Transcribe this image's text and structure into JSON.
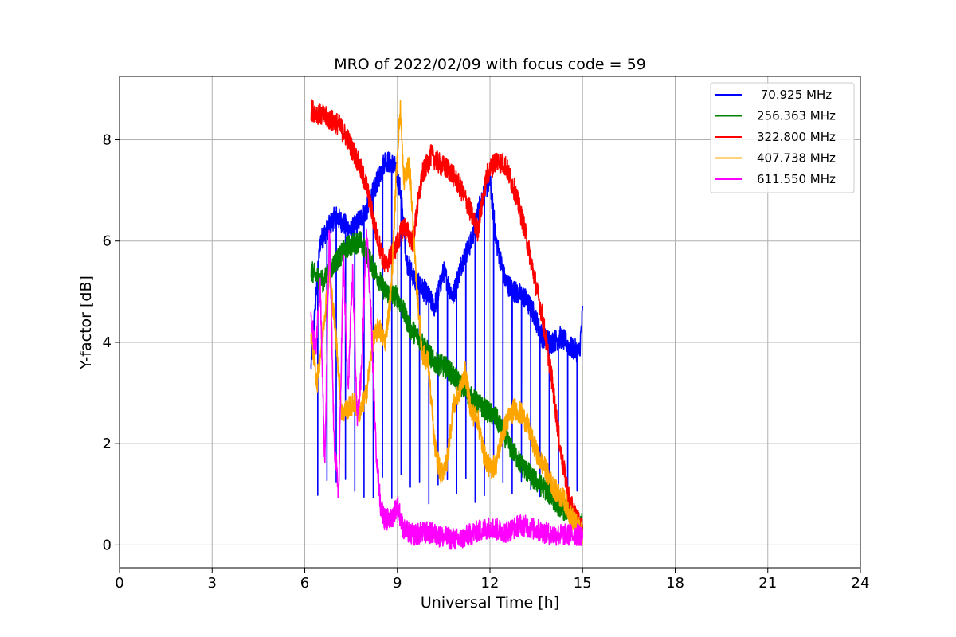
{
  "chart_data": {
    "type": "line",
    "title": "MRO of 2022/02/09 with focus code = 59",
    "xlabel": "Universal Time [h]",
    "ylabel": "Y-factor [dB]",
    "xlim": [
      0,
      24
    ],
    "ylim": [
      -0.45,
      9.25
    ],
    "xticks": [
      0,
      3,
      6,
      9,
      12,
      15,
      18,
      21,
      24
    ],
    "yticks": [
      0,
      2,
      4,
      6,
      8
    ],
    "grid": true,
    "legend_position": "top-right",
    "series": [
      {
        "name": " 70.925 MHz",
        "color": "#0000ff",
        "x": [
          6.2,
          6.5,
          7.0,
          7.5,
          8.0,
          8.3,
          8.6,
          8.9,
          9.1,
          9.3,
          9.6,
          9.9,
          10.2,
          10.5,
          10.8,
          11.1,
          11.4,
          11.7,
          12.0,
          12.2,
          12.5,
          12.8,
          13.1,
          13.4,
          13.7,
          14.0,
          14.3,
          14.6,
          14.9,
          15.0
        ],
        "y": [
          3.5,
          6.0,
          6.5,
          6.2,
          6.6,
          7.1,
          7.6,
          7.5,
          7.0,
          5.6,
          5.2,
          5.0,
          4.7,
          5.4,
          4.9,
          5.6,
          6.0,
          6.8,
          7.2,
          6.0,
          5.2,
          5.0,
          4.9,
          4.6,
          4.1,
          4.0,
          4.1,
          3.9,
          3.8,
          4.6
        ],
        "dips": [
          6.4,
          6.7,
          7.0,
          7.3,
          7.6,
          7.9,
          8.2,
          8.5,
          8.8,
          9.1,
          9.4,
          9.7,
          10.0,
          10.3,
          10.6,
          10.9,
          11.2,
          11.5,
          11.8,
          12.1,
          12.4,
          12.7,
          13.0,
          13.3,
          13.6,
          13.9,
          14.2,
          14.5,
          14.8
        ],
        "dip_to": 0.8
      },
      {
        "name": "256.363 MHz",
        "color": "#008000",
        "x": [
          6.2,
          6.6,
          7.0,
          7.4,
          7.8,
          8.2,
          8.6,
          9.0,
          9.4,
          9.8,
          10.2,
          10.6,
          11.0,
          11.4,
          11.8,
          12.2,
          12.6,
          13.0,
          13.4,
          13.8,
          14.2,
          14.6,
          15.0
        ],
        "y": [
          5.4,
          5.2,
          5.6,
          5.9,
          6.0,
          5.5,
          5.0,
          4.9,
          4.3,
          4.0,
          3.6,
          3.5,
          3.2,
          2.9,
          2.7,
          2.5,
          2.0,
          1.6,
          1.3,
          1.1,
          0.8,
          0.6,
          0.4
        ]
      },
      {
        "name": "322.800 MHz",
        "color": "#ff0000",
        "x": [
          6.2,
          6.5,
          6.8,
          7.1,
          7.4,
          7.7,
          8.0,
          8.3,
          8.6,
          8.9,
          9.2,
          9.5,
          9.8,
          10.1,
          10.4,
          10.7,
          11.0,
          11.3,
          11.6,
          11.9,
          12.2,
          12.5,
          12.8,
          13.1,
          13.4,
          13.7,
          14.0,
          14.3,
          14.6,
          15.0
        ],
        "y": [
          8.6,
          8.5,
          8.4,
          8.3,
          8.0,
          7.6,
          7.1,
          6.2,
          5.5,
          5.8,
          6.3,
          6.0,
          7.3,
          7.7,
          7.5,
          7.4,
          7.1,
          6.7,
          6.2,
          7.3,
          7.6,
          7.5,
          7.0,
          6.3,
          5.4,
          4.5,
          3.3,
          1.8,
          0.8,
          0.3
        ]
      },
      {
        "name": "407.738 MHz",
        "color": "#ffa500",
        "x": [
          6.2,
          6.4,
          6.6,
          6.8,
          7.0,
          7.2,
          7.4,
          7.6,
          7.8,
          8.0,
          8.2,
          8.4,
          8.6,
          8.8,
          9.0,
          9.1,
          9.2,
          9.4,
          9.6,
          9.8,
          10.0,
          10.2,
          10.4,
          10.6,
          10.8,
          11.0,
          11.2,
          11.4,
          11.6,
          11.8,
          12.0,
          12.2,
          12.4,
          12.6,
          12.8,
          13.0,
          13.2,
          13.4,
          13.6,
          13.8,
          14.0,
          14.2,
          14.4,
          14.6,
          14.8,
          15.0
        ],
        "y": [
          4.2,
          3.2,
          4.3,
          5.4,
          4.2,
          2.6,
          2.7,
          2.8,
          2.6,
          3.0,
          4.0,
          4.3,
          4.0,
          5.0,
          7.8,
          8.6,
          7.2,
          7.5,
          5.3,
          3.8,
          3.6,
          2.0,
          1.4,
          1.6,
          2.7,
          3.0,
          3.4,
          2.6,
          2.5,
          1.8,
          1.5,
          1.6,
          2.2,
          2.5,
          2.7,
          2.6,
          2.4,
          2.0,
          1.7,
          1.5,
          1.2,
          1.0,
          0.9,
          0.6,
          0.4,
          0.2
        ]
      },
      {
        "name": "611.550 MHz",
        "color": "#ff00ff",
        "x": [
          6.2,
          6.35,
          6.5,
          6.65,
          6.8,
          6.95,
          7.1,
          7.25,
          7.4,
          7.55,
          7.7,
          7.85,
          8.0,
          8.15,
          8.3,
          8.45,
          8.6,
          8.8,
          9.0,
          9.2,
          9.5,
          10.0,
          10.5,
          11.0,
          11.5,
          12.0,
          12.5,
          13.0,
          13.5,
          14.0,
          14.5,
          15.0
        ],
        "y": [
          4.5,
          3.8,
          5.2,
          1.5,
          6.3,
          2.0,
          1.0,
          5.7,
          3.0,
          5.4,
          2.5,
          3.5,
          6.3,
          4.5,
          2.0,
          0.8,
          0.5,
          0.5,
          0.8,
          0.3,
          0.2,
          0.25,
          0.15,
          0.1,
          0.25,
          0.35,
          0.25,
          0.4,
          0.3,
          0.2,
          0.2,
          0.2
        ]
      }
    ]
  }
}
